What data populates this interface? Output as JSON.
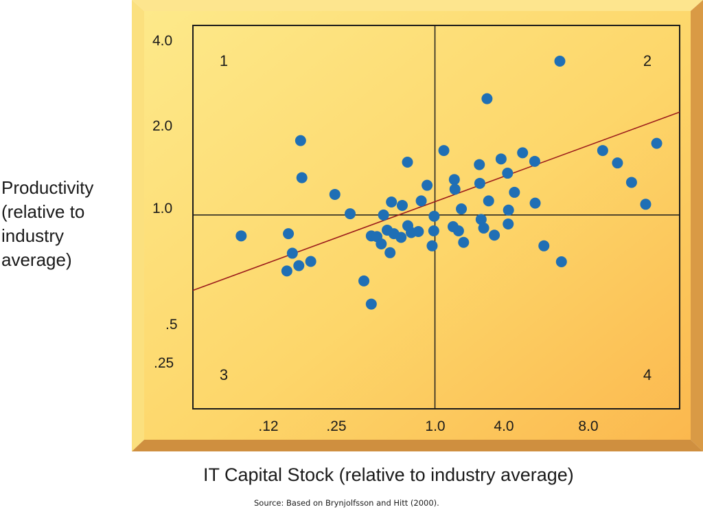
{
  "chart_data": {
    "type": "scatter",
    "xlabel": "IT Capital Stock (relative to industry average)",
    "ylabel_lines": [
      "Productivity",
      "(relative to",
      "industry",
      "average)"
    ],
    "x_ticks": [
      ".12",
      ".25",
      "1.0",
      "4.0",
      "8.0"
    ],
    "y_ticks": [
      "4.0",
      "2.0",
      "1.0",
      ".5",
      ".25"
    ],
    "quadrant_labels": [
      "1",
      "2",
      "3",
      "4"
    ],
    "source": "Source: Based on Brynjolfsson and Hitt (2000).",
    "tick_positions": {
      "x": [
        0.0625,
        0.125,
        0.25,
        0.5,
        1,
        2,
        4,
        8,
        16
      ],
      "x_labeled": [
        0.125,
        0.25,
        1,
        4,
        8
      ],
      "y": [
        0.25,
        0.5,
        1,
        2,
        4
      ],
      "xlim": [
        0.046,
        22.5
      ],
      "ylim": [
        0.21,
        4.6
      ],
      "scale": "log2"
    },
    "divider": {
      "x": 1.0,
      "y": 1.0
    },
    "trend_line": {
      "x": [
        0.046,
        22.5
      ],
      "y": [
        0.545,
        2.29
      ]
    },
    "points": [
      {
        "x": 0.085,
        "y": 0.845
      },
      {
        "x": 0.155,
        "y": 0.86
      },
      {
        "x": 0.163,
        "y": 0.735
      },
      {
        "x": 0.177,
        "y": 0.665
      },
      {
        "x": 0.152,
        "y": 0.637
      },
      {
        "x": 0.206,
        "y": 0.688
      },
      {
        "x": 0.181,
        "y": 1.82
      },
      {
        "x": 0.184,
        "y": 1.35
      },
      {
        "x": 0.28,
        "y": 1.18
      },
      {
        "x": 0.34,
        "y": 1.01
      },
      {
        "x": 0.405,
        "y": 0.588
      },
      {
        "x": 0.445,
        "y": 0.488
      },
      {
        "x": 0.445,
        "y": 0.845
      },
      {
        "x": 0.478,
        "y": 0.84
      },
      {
        "x": 0.505,
        "y": 0.792
      },
      {
        "x": 0.52,
        "y": 1.0
      },
      {
        "x": 0.545,
        "y": 0.885
      },
      {
        "x": 0.565,
        "y": 0.738
      },
      {
        "x": 0.575,
        "y": 1.11
      },
      {
        "x": 0.593,
        "y": 0.86
      },
      {
        "x": 0.66,
        "y": 1.08
      },
      {
        "x": 0.65,
        "y": 0.835
      },
      {
        "x": 0.705,
        "y": 1.53
      },
      {
        "x": 0.708,
        "y": 0.917
      },
      {
        "x": 0.74,
        "y": 0.868
      },
      {
        "x": 0.84,
        "y": 1.12
      },
      {
        "x": 0.81,
        "y": 0.875
      },
      {
        "x": 0.905,
        "y": 1.27
      },
      {
        "x": 0.99,
        "y": 0.99
      },
      {
        "x": 0.985,
        "y": 0.88
      },
      {
        "x": 0.965,
        "y": 0.78
      },
      {
        "x": 1.12,
        "y": 1.68
      },
      {
        "x": 1.28,
        "y": 1.33
      },
      {
        "x": 1.29,
        "y": 1.23
      },
      {
        "x": 1.26,
        "y": 0.91
      },
      {
        "x": 1.35,
        "y": 0.88
      },
      {
        "x": 1.4,
        "y": 1.05
      },
      {
        "x": 1.44,
        "y": 0.802
      },
      {
        "x": 1.76,
        "y": 1.5
      },
      {
        "x": 1.77,
        "y": 1.29
      },
      {
        "x": 1.8,
        "y": 0.965
      },
      {
        "x": 1.86,
        "y": 0.9
      },
      {
        "x": 1.94,
        "y": 2.55
      },
      {
        "x": 1.98,
        "y": 1.12
      },
      {
        "x": 2.13,
        "y": 0.85
      },
      {
        "x": 2.32,
        "y": 1.57
      },
      {
        "x": 2.52,
        "y": 1.4
      },
      {
        "x": 2.54,
        "y": 0.93
      },
      {
        "x": 2.55,
        "y": 1.04
      },
      {
        "x": 2.75,
        "y": 1.2
      },
      {
        "x": 3.05,
        "y": 1.65
      },
      {
        "x": 3.56,
        "y": 1.54
      },
      {
        "x": 3.58,
        "y": 1.1
      },
      {
        "x": 4.0,
        "y": 0.78
      },
      {
        "x": 4.9,
        "y": 3.45
      },
      {
        "x": 5.0,
        "y": 0.686
      },
      {
        "x": 8.45,
        "y": 1.68
      },
      {
        "x": 10.2,
        "y": 1.52
      },
      {
        "x": 12.2,
        "y": 1.3
      },
      {
        "x": 14.6,
        "y": 1.09
      },
      {
        "x": 16.8,
        "y": 1.78
      }
    ]
  }
}
